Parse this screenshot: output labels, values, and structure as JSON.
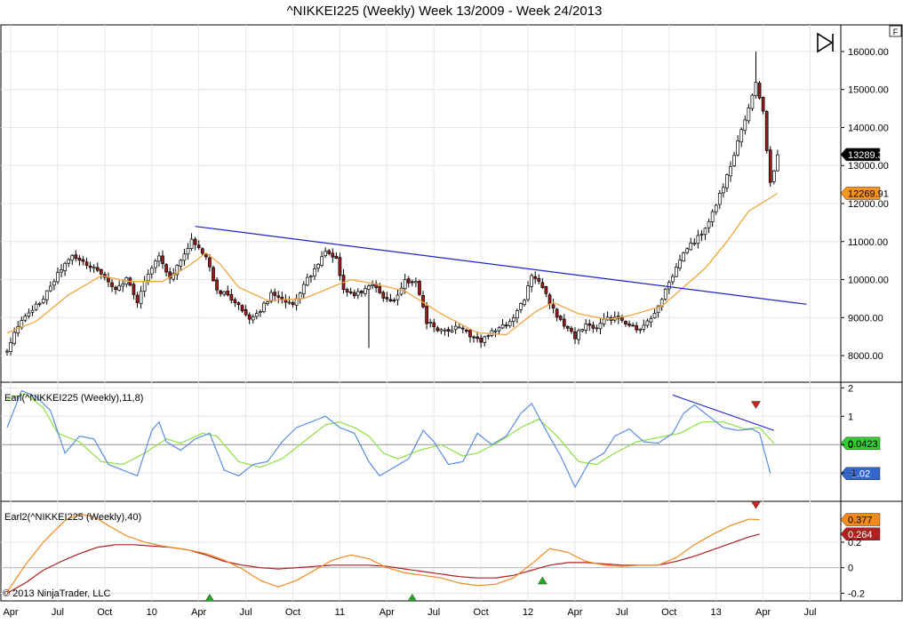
{
  "window": {
    "title": "^NIKKEI225 (Weekly)  Week 13/2009 - Week 24/2013"
  },
  "toolbar": {
    "corner_badge": "F",
    "skip_to_end_icon": "skip-to-end-icon"
  },
  "copyright": "© 2013 NinjaTrader, LLC",
  "colors": {
    "up_candle": "#ffffff",
    "down_candle": "#a01818",
    "sma": "#f2a33a",
    "trendline": "#2020d0",
    "earl_fast": "#5a8de0",
    "earl_slow": "#8ee040",
    "earl2_fast": "#f08a20",
    "earl2_slow": "#b02020",
    "badge_price": "#000000",
    "badge_sma": "#f7941d",
    "badge_green": "#33cc33",
    "badge_blue": "#3366cc",
    "badge_orange": "#f08a20",
    "badge_red": "#b02020",
    "signal_up": "#22aa22",
    "signal_down": "#cc2222"
  },
  "chart_data": {
    "type": "candlestick",
    "x_tick_labels": [
      "Apr",
      "Jul",
      "Oct",
      "10",
      "Apr",
      "Jul",
      "Oct",
      "11",
      "Apr",
      "Jul",
      "Oct",
      "12",
      "Apr",
      "Jul",
      "Oct",
      "13",
      "Apr",
      "Jul"
    ],
    "price_panel": {
      "y_ticks": [
        8000,
        9000,
        10000,
        11000,
        12000,
        13000,
        14000,
        15000,
        16000
      ],
      "y_tick_labels": [
        "8000.00",
        "9000.00",
        "10000.00",
        "11000.00",
        "12000.00",
        "13000.00",
        "14000.00",
        "15000.00",
        "16000.00"
      ],
      "ylim": [
        7300,
        16700
      ],
      "close_anchors": [
        [
          0,
          8100
        ],
        [
          3,
          8800
        ],
        [
          6,
          9100
        ],
        [
          9,
          9400
        ],
        [
          12,
          9800
        ],
        [
          15,
          10300
        ],
        [
          18,
          10600
        ],
        [
          21,
          10450
        ],
        [
          24,
          10300
        ],
        [
          27,
          10100
        ],
        [
          30,
          9700
        ],
        [
          33,
          10000
        ],
        [
          36,
          9400
        ],
        [
          39,
          10200
        ],
        [
          42,
          10600
        ],
        [
          45,
          10050
        ],
        [
          48,
          10500
        ],
        [
          51,
          11050
        ],
        [
          52,
          10900
        ],
        [
          55,
          10600
        ],
        [
          58,
          9700
        ],
        [
          61,
          9600
        ],
        [
          64,
          9300
        ],
        [
          67,
          9000
        ],
        [
          70,
          9200
        ],
        [
          73,
          9600
        ],
        [
          76,
          9450
        ],
        [
          79,
          9300
        ],
        [
          82,
          9900
        ],
        [
          85,
          10250
        ],
        [
          88,
          10700
        ],
        [
          91,
          10500
        ],
        [
          93,
          9800
        ],
        [
          95,
          9600
        ],
        [
          98,
          9700
        ],
        [
          101,
          9900
        ],
        [
          104,
          9500
        ],
        [
          107,
          9400
        ],
        [
          110,
          10000
        ],
        [
          113,
          9900
        ],
        [
          116,
          8900
        ],
        [
          119,
          8700
        ],
        [
          122,
          8600
        ],
        [
          125,
          8800
        ],
        [
          128,
          8500
        ],
        [
          131,
          8400
        ],
        [
          134,
          8600
        ],
        [
          137,
          8750
        ],
        [
          140,
          9000
        ],
        [
          143,
          9500
        ],
        [
          145,
          10150
        ],
        [
          148,
          9800
        ],
        [
          151,
          9200
        ],
        [
          154,
          8800
        ],
        [
          157,
          8500
        ],
        [
          160,
          8800
        ],
        [
          163,
          8700
        ],
        [
          166,
          9000
        ],
        [
          169,
          8950
        ],
        [
          172,
          8800
        ],
        [
          175,
          8700
        ],
        [
          178,
          9000
        ],
        [
          181,
          9500
        ],
        [
          184,
          10100
        ],
        [
          187,
          10700
        ],
        [
          190,
          11000
        ],
        [
          193,
          11300
        ],
        [
          196,
          12000
        ],
        [
          199,
          12700
        ],
        [
          202,
          13600
        ],
        [
          205,
          14500
        ],
        [
          207,
          15200
        ],
        [
          209,
          14400
        ],
        [
          211,
          12500
        ],
        [
          213,
          13289
        ]
      ],
      "sma_anchors": [
        [
          0,
          8600
        ],
        [
          8,
          8900
        ],
        [
          17,
          9600
        ],
        [
          26,
          10100
        ],
        [
          34,
          9950
        ],
        [
          43,
          9950
        ],
        [
          50,
          10350
        ],
        [
          55,
          10700
        ],
        [
          59,
          10400
        ],
        [
          64,
          9800
        ],
        [
          72,
          9450
        ],
        [
          82,
          9500
        ],
        [
          91,
          9850
        ],
        [
          95,
          10000
        ],
        [
          101,
          9900
        ],
        [
          110,
          9700
        ],
        [
          120,
          9100
        ],
        [
          130,
          8600
        ],
        [
          138,
          8550
        ],
        [
          146,
          9150
        ],
        [
          151,
          9400
        ],
        [
          158,
          9100
        ],
        [
          166,
          8950
        ],
        [
          172,
          9050
        ],
        [
          181,
          9300
        ],
        [
          187,
          9800
        ],
        [
          193,
          10300
        ],
        [
          199,
          11000
        ],
        [
          205,
          11800
        ],
        [
          213,
          12270
        ]
      ],
      "earnings_gap_low": [
        100,
        8200
      ],
      "trendline": {
        "start": [
          52,
          11400
        ],
        "end": [
          221,
          9350
        ]
      },
      "last_price_label": "13289.32",
      "sma_value_label": "12269.91"
    },
    "earl_panel": {
      "title": "Earl(^NIKKEI225 (Weekly),11,8)",
      "y_ticks": [
        -1,
        0,
        1,
        2
      ],
      "y_tick_labels": [
        "-1",
        "0",
        "1",
        "2"
      ],
      "ylim": [
        -2.0,
        2.2
      ],
      "fast_anchors": [
        [
          0,
          0.6
        ],
        [
          4,
          1.9
        ],
        [
          8,
          1.7
        ],
        [
          12,
          1.2
        ],
        [
          16,
          -0.3
        ],
        [
          20,
          0.3
        ],
        [
          24,
          0.2
        ],
        [
          28,
          -0.7
        ],
        [
          32,
          -0.9
        ],
        [
          36,
          -1.1
        ],
        [
          40,
          0.5
        ],
        [
          42,
          0.8
        ],
        [
          44,
          0.1
        ],
        [
          48,
          -0.2
        ],
        [
          52,
          0.2
        ],
        [
          56,
          0.4
        ],
        [
          60,
          -0.9
        ],
        [
          64,
          -1.1
        ],
        [
          68,
          -0.7
        ],
        [
          72,
          -0.6
        ],
        [
          76,
          0.1
        ],
        [
          80,
          0.6
        ],
        [
          84,
          0.8
        ],
        [
          88,
          1.0
        ],
        [
          92,
          0.6
        ],
        [
          96,
          0.4
        ],
        [
          100,
          -0.6
        ],
        [
          103,
          -1.1
        ],
        [
          107,
          -0.8
        ],
        [
          111,
          -0.5
        ],
        [
          115,
          0.5
        ],
        [
          118,
          0.1
        ],
        [
          122,
          -0.7
        ],
        [
          126,
          -0.6
        ],
        [
          130,
          0.4
        ],
        [
          134,
          0.0
        ],
        [
          138,
          0.3
        ],
        [
          142,
          1.1
        ],
        [
          145,
          1.45
        ],
        [
          149,
          0.5
        ],
        [
          153,
          -0.4
        ],
        [
          157,
          -1.5
        ],
        [
          161,
          -0.6
        ],
        [
          165,
          -0.3
        ],
        [
          168,
          0.3
        ],
        [
          172,
          0.55
        ],
        [
          176,
          0.1
        ],
        [
          180,
          0.05
        ],
        [
          184,
          0.4
        ],
        [
          187,
          1.1
        ],
        [
          190,
          1.4
        ],
        [
          194,
          1.0
        ],
        [
          198,
          0.6
        ],
        [
          202,
          0.5
        ],
        [
          206,
          0.55
        ],
        [
          208,
          0.4
        ],
        [
          211,
          -1.02
        ]
      ],
      "slow_anchors": [
        [
          0,
          1.6
        ],
        [
          5,
          1.8
        ],
        [
          10,
          1.3
        ],
        [
          14,
          0.4
        ],
        [
          20,
          0.1
        ],
        [
          26,
          -0.6
        ],
        [
          32,
          -0.7
        ],
        [
          38,
          -0.3
        ],
        [
          44,
          0.2
        ],
        [
          48,
          0.05
        ],
        [
          54,
          0.4
        ],
        [
          58,
          0.3
        ],
        [
          64,
          -0.6
        ],
        [
          70,
          -0.8
        ],
        [
          76,
          -0.5
        ],
        [
          82,
          0.1
        ],
        [
          88,
          0.7
        ],
        [
          92,
          0.8
        ],
        [
          96,
          0.6
        ],
        [
          100,
          0.3
        ],
        [
          104,
          -0.3
        ],
        [
          108,
          -0.5
        ],
        [
          114,
          -0.2
        ],
        [
          120,
          0.0
        ],
        [
          126,
          -0.4
        ],
        [
          130,
          -0.3
        ],
        [
          136,
          0.1
        ],
        [
          142,
          0.6
        ],
        [
          147,
          0.9
        ],
        [
          152,
          0.3
        ],
        [
          158,
          -0.6
        ],
        [
          163,
          -0.7
        ],
        [
          168,
          -0.3
        ],
        [
          174,
          0.1
        ],
        [
          180,
          0.25
        ],
        [
          186,
          0.4
        ],
        [
          192,
          0.8
        ],
        [
          198,
          0.8
        ],
        [
          204,
          0.55
        ],
        [
          208,
          0.6
        ],
        [
          212,
          0.0423
        ]
      ],
      "trendline": {
        "start": [
          184,
          1.75
        ],
        "end": [
          212,
          0.5
        ]
      },
      "fast_value_label": "-1.02",
      "slow_value_label": "0.0423",
      "signals": [
        {
          "x": 207,
          "y": 1.4,
          "dir": "down"
        }
      ]
    },
    "earl2_panel": {
      "title": "Earl2(^NIKKEI225 (Weekly),40)",
      "y_ticks": [
        -0.2,
        0,
        0.2
      ],
      "y_tick_labels": [
        "-0.2",
        "0",
        "0.2"
      ],
      "ylim": [
        -0.26,
        0.52
      ],
      "fast_anchors": [
        [
          0,
          -0.19
        ],
        [
          5,
          0.02
        ],
        [
          10,
          0.2
        ],
        [
          16,
          0.37
        ],
        [
          20,
          0.42
        ],
        [
          24,
          0.4
        ],
        [
          28,
          0.33
        ],
        [
          33,
          0.25
        ],
        [
          38,
          0.2
        ],
        [
          43,
          0.17
        ],
        [
          50,
          0.14
        ],
        [
          55,
          0.11
        ],
        [
          60,
          0.06
        ],
        [
          65,
          -0.01
        ],
        [
          70,
          -0.1
        ],
        [
          75,
          -0.15
        ],
        [
          80,
          -0.1
        ],
        [
          85,
          -0.02
        ],
        [
          90,
          0.06
        ],
        [
          95,
          0.1
        ],
        [
          100,
          0.07
        ],
        [
          105,
          0.0
        ],
        [
          110,
          -0.04
        ],
        [
          115,
          -0.06
        ],
        [
          120,
          -0.08
        ],
        [
          125,
          -0.12
        ],
        [
          130,
          -0.14
        ],
        [
          135,
          -0.13
        ],
        [
          140,
          -0.08
        ],
        [
          145,
          0.03
        ],
        [
          150,
          0.15
        ],
        [
          155,
          0.12
        ],
        [
          160,
          0.05
        ],
        [
          165,
          0.02
        ],
        [
          170,
          0.01
        ],
        [
          175,
          0.02
        ],
        [
          180,
          0.02
        ],
        [
          185,
          0.08
        ],
        [
          190,
          0.18
        ],
        [
          195,
          0.26
        ],
        [
          200,
          0.33
        ],
        [
          205,
          0.38
        ],
        [
          208,
          0.377
        ]
      ],
      "slow_anchors": [
        [
          0,
          -0.2
        ],
        [
          5,
          -0.12
        ],
        [
          10,
          -0.02
        ],
        [
          15,
          0.05
        ],
        [
          20,
          0.11
        ],
        [
          25,
          0.16
        ],
        [
          30,
          0.18
        ],
        [
          35,
          0.18
        ],
        [
          40,
          0.17
        ],
        [
          45,
          0.16
        ],
        [
          50,
          0.14
        ],
        [
          55,
          0.1
        ],
        [
          60,
          0.05
        ],
        [
          65,
          0.02
        ],
        [
          70,
          0.0
        ],
        [
          75,
          -0.01
        ],
        [
          80,
          0.0
        ],
        [
          85,
          0.01
        ],
        [
          90,
          0.02
        ],
        [
          95,
          0.02
        ],
        [
          100,
          0.02
        ],
        [
          105,
          0.01
        ],
        [
          110,
          -0.01
        ],
        [
          115,
          -0.03
        ],
        [
          120,
          -0.05
        ],
        [
          125,
          -0.07
        ],
        [
          130,
          -0.08
        ],
        [
          135,
          -0.08
        ],
        [
          140,
          -0.06
        ],
        [
          145,
          -0.02
        ],
        [
          150,
          0.02
        ],
        [
          155,
          0.04
        ],
        [
          160,
          0.04
        ],
        [
          165,
          0.03
        ],
        [
          170,
          0.02
        ],
        [
          175,
          0.02
        ],
        [
          180,
          0.02
        ],
        [
          185,
          0.05
        ],
        [
          190,
          0.09
        ],
        [
          195,
          0.14
        ],
        [
          200,
          0.19
        ],
        [
          205,
          0.24
        ],
        [
          208,
          0.264
        ]
      ],
      "fast_value_label": "0.377",
      "slow_value_label": "0.264",
      "signals": [
        {
          "x": 56,
          "y": -0.235,
          "dir": "up"
        },
        {
          "x": 112,
          "y": -0.235,
          "dir": "up"
        },
        {
          "x": 148,
          "y": -0.1,
          "dir": "up"
        },
        {
          "x": 207,
          "y": 0.49,
          "dir": "down"
        }
      ]
    }
  }
}
